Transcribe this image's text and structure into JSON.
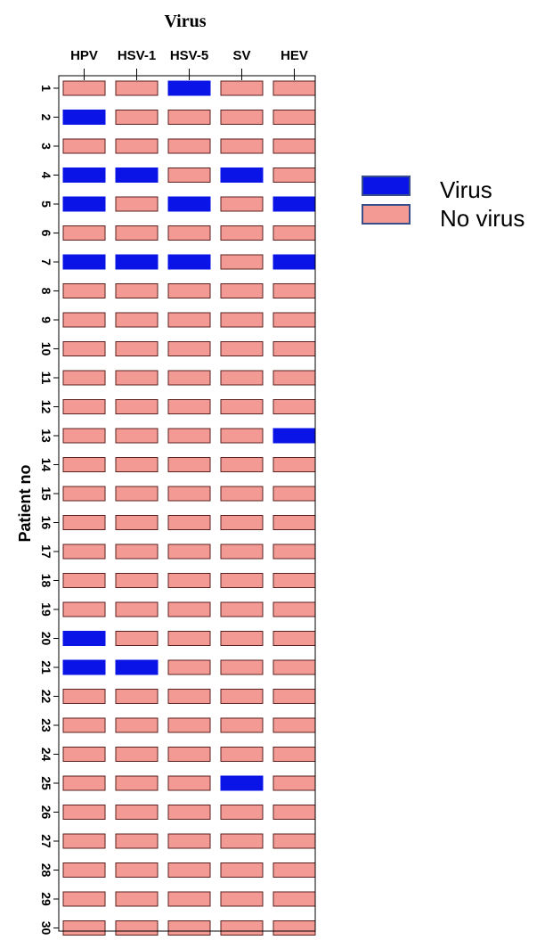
{
  "chart_data": {
    "type": "heatmap",
    "title": "Virus",
    "xlabel": "",
    "ylabel": "Patient no",
    "columns": [
      "HPV",
      "HSV-1",
      "HSV-5",
      "SV",
      "HEV"
    ],
    "rows": [
      "1",
      "2",
      "3",
      "4",
      "5",
      "6",
      "7",
      "8",
      "9",
      "10",
      "11",
      "12",
      "13",
      "14",
      "15",
      "16",
      "17",
      "18",
      "19",
      "20",
      "21",
      "22",
      "23",
      "24",
      "25",
      "26",
      "27",
      "28",
      "29",
      "30"
    ],
    "values": [
      [
        0,
        0,
        1,
        0,
        0
      ],
      [
        1,
        0,
        0,
        0,
        0
      ],
      [
        0,
        0,
        0,
        0,
        0
      ],
      [
        1,
        1,
        0,
        1,
        0
      ],
      [
        1,
        0,
        1,
        0,
        1
      ],
      [
        0,
        0,
        0,
        0,
        0
      ],
      [
        1,
        1,
        1,
        0,
        1
      ],
      [
        0,
        0,
        0,
        0,
        0
      ],
      [
        0,
        0,
        0,
        0,
        0
      ],
      [
        0,
        0,
        0,
        0,
        0
      ],
      [
        0,
        0,
        0,
        0,
        0
      ],
      [
        0,
        0,
        0,
        0,
        0
      ],
      [
        0,
        0,
        0,
        0,
        1
      ],
      [
        0,
        0,
        0,
        0,
        0
      ],
      [
        0,
        0,
        0,
        0,
        0
      ],
      [
        0,
        0,
        0,
        0,
        0
      ],
      [
        0,
        0,
        0,
        0,
        0
      ],
      [
        0,
        0,
        0,
        0,
        0
      ],
      [
        0,
        0,
        0,
        0,
        0
      ],
      [
        1,
        0,
        0,
        0,
        0
      ],
      [
        1,
        1,
        0,
        0,
        0
      ],
      [
        0,
        0,
        0,
        0,
        0
      ],
      [
        0,
        0,
        0,
        0,
        0
      ],
      [
        0,
        0,
        0,
        0,
        0
      ],
      [
        0,
        0,
        0,
        1,
        0
      ],
      [
        0,
        0,
        0,
        0,
        0
      ],
      [
        0,
        0,
        0,
        0,
        0
      ],
      [
        0,
        0,
        0,
        0,
        0
      ],
      [
        0,
        0,
        0,
        0,
        0
      ],
      [
        0,
        0,
        0,
        0,
        0
      ]
    ],
    "legend": [
      {
        "value": 1,
        "label": "Virus",
        "color": "#0a14e6"
      },
      {
        "value": 0,
        "label": "No virus",
        "color": "#f49a95"
      }
    ],
    "legend_position": "right",
    "grid": false
  },
  "colors": {
    "virus": "#0a14e6",
    "no_virus": "#f49a95",
    "cell_border": "#5a2020",
    "legend_border": "#3a4f8a"
  }
}
